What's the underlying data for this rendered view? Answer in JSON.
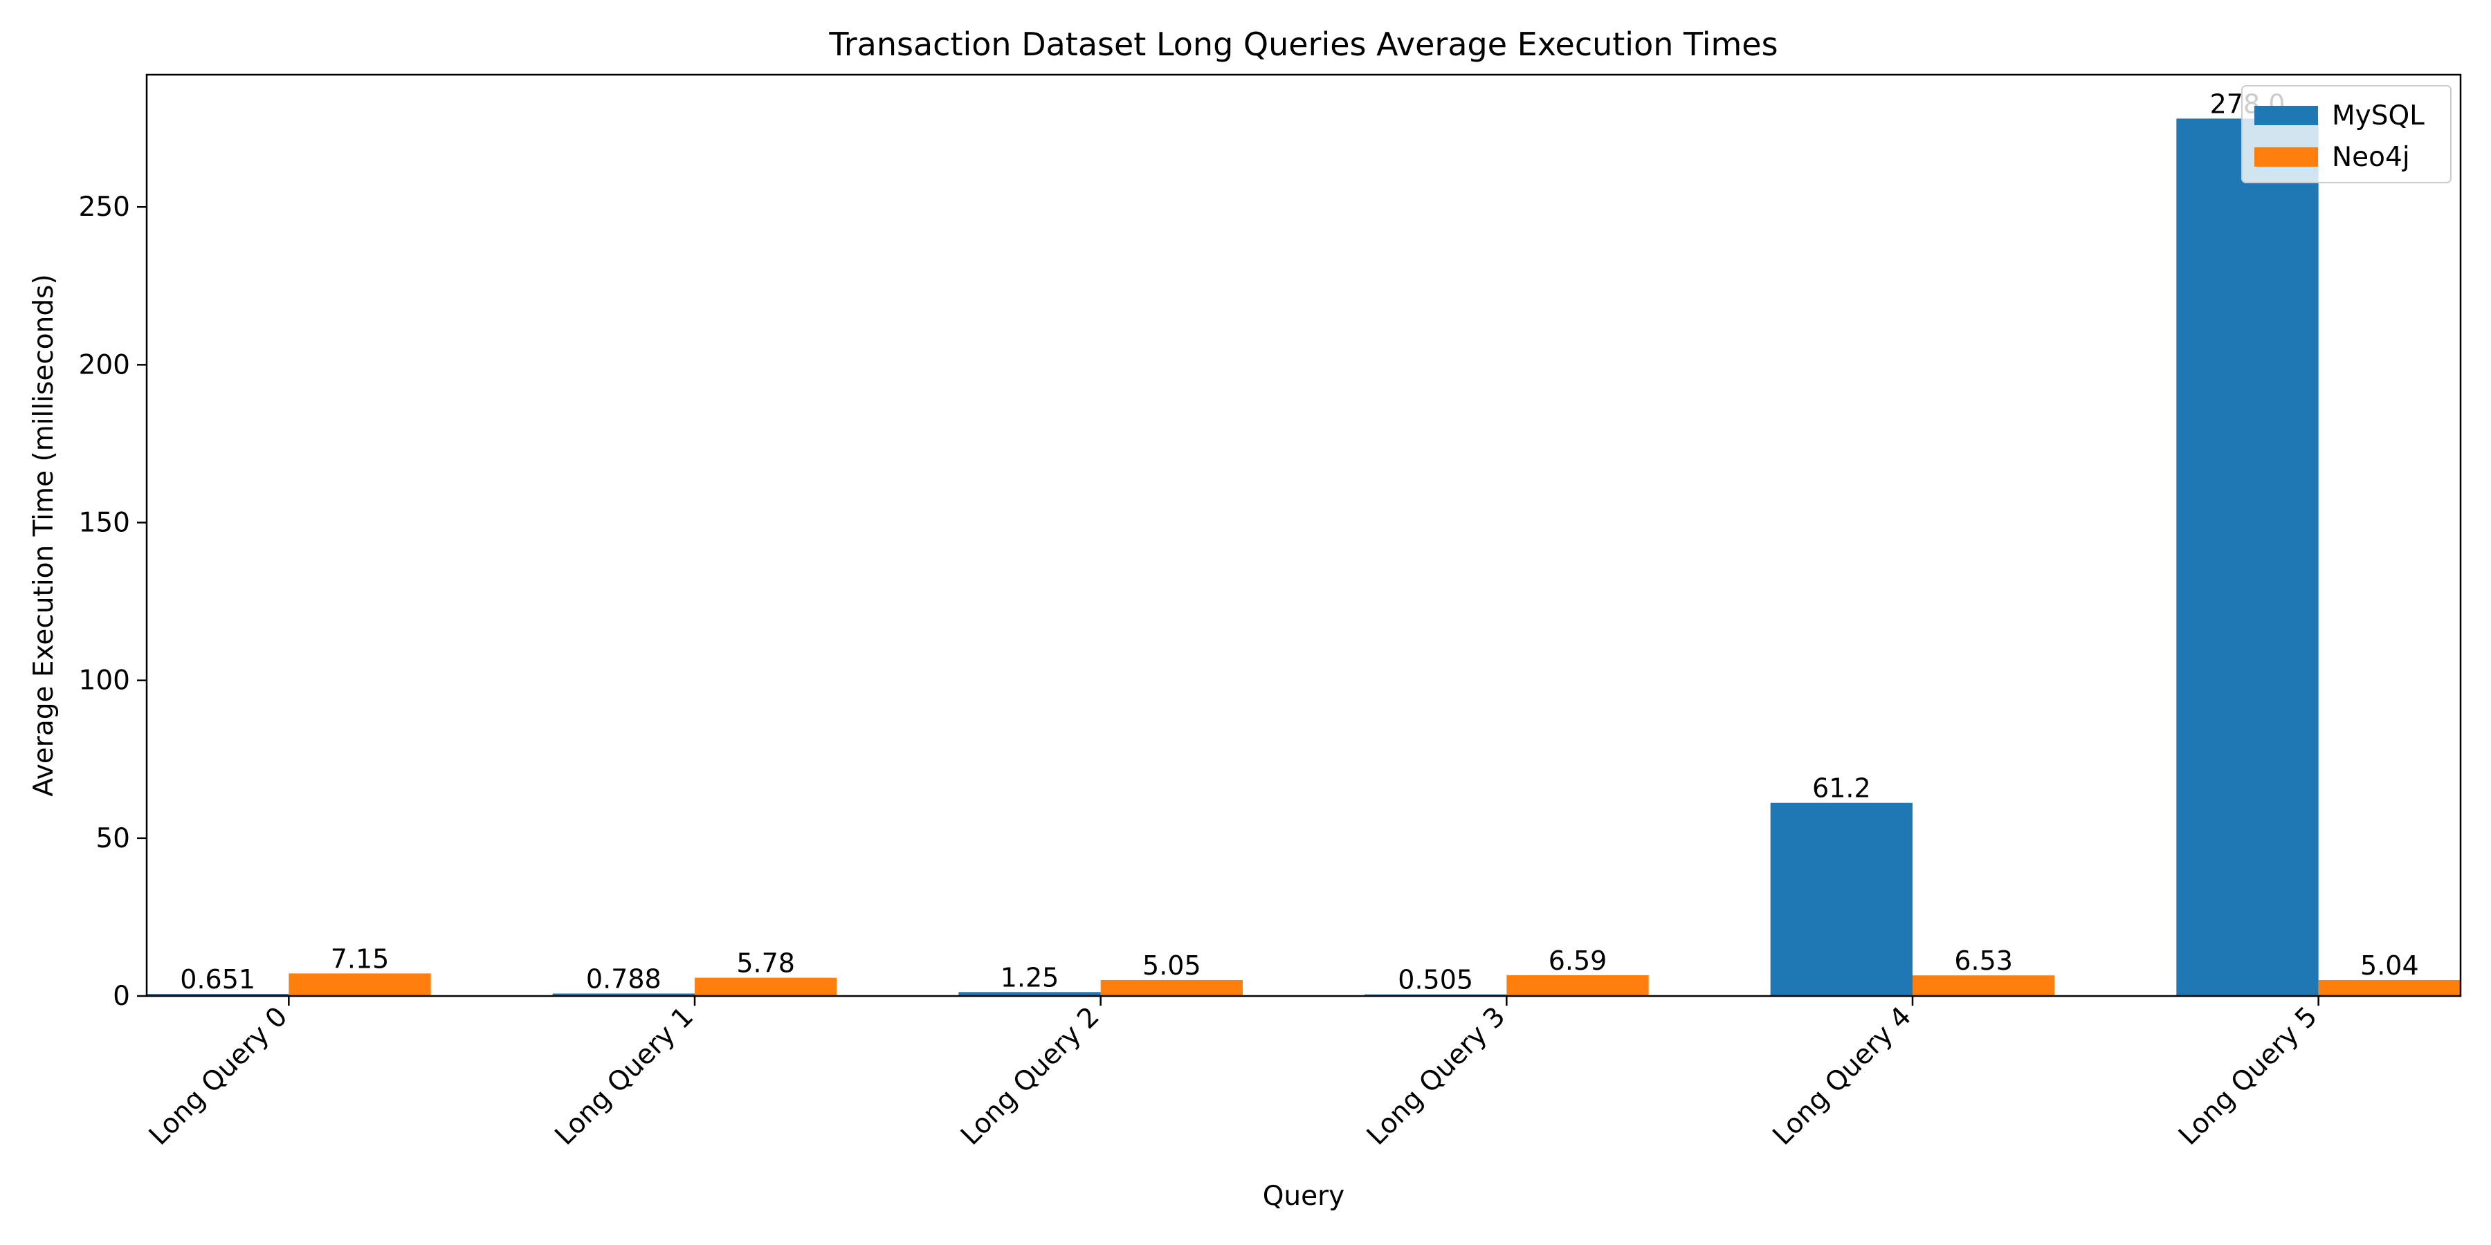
{
  "chart_data": {
    "type": "bar",
    "title": "Transaction Dataset Long Queries Average Execution Times",
    "xlabel": "Query",
    "ylabel": "Average Execution Time (milliseconds)",
    "categories": [
      "Long Query 0",
      "Long Query 1",
      "Long Query 2",
      "Long Query 3",
      "Long Query 4",
      "Long Query 5"
    ],
    "series": [
      {
        "name": "MySQL",
        "color": "#1f77b4",
        "values": [
          0.651,
          0.788,
          1.25,
          0.505,
          61.2,
          278.0
        ],
        "labels": [
          "0.651",
          "0.788",
          "1.25",
          "0.505",
          "61.2",
          "278.0"
        ]
      },
      {
        "name": "Neo4j",
        "color": "#ff7f0e",
        "values": [
          7.15,
          5.78,
          5.05,
          6.59,
          6.53,
          5.04
        ],
        "labels": [
          "7.15",
          "5.78",
          "5.05",
          "6.59",
          "6.53",
          "5.04"
        ]
      }
    ],
    "ylim": [
      0,
      291.9
    ],
    "yticks": [
      0,
      50,
      100,
      150,
      200,
      250
    ],
    "grid": false,
    "legend_position": "upper right"
  }
}
